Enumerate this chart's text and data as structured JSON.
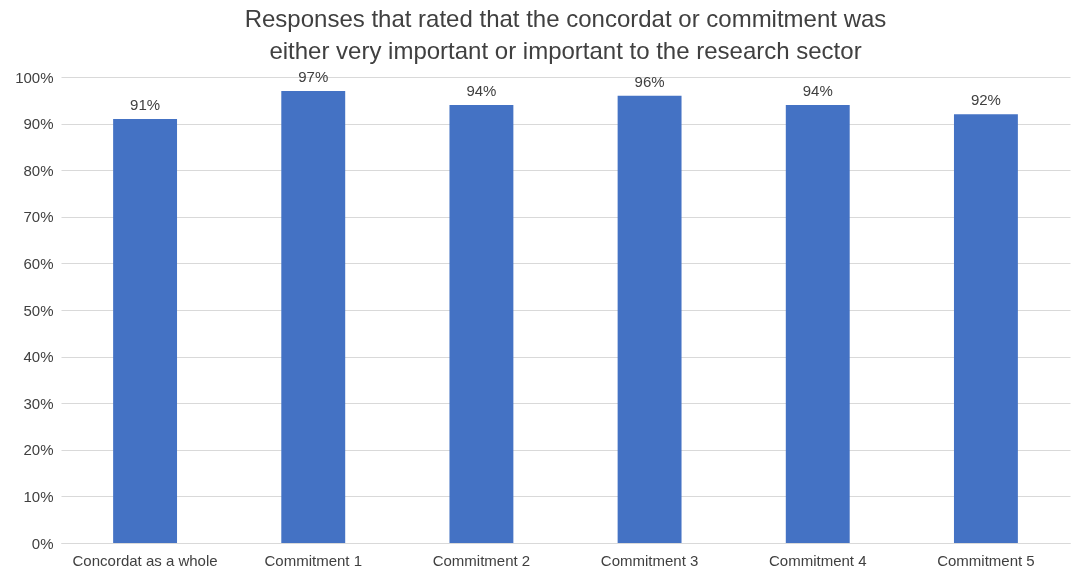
{
  "chart_data": {
    "type": "bar",
    "title": "Responses that rated that the concordat or commitment was either very important or important to the research sector",
    "categories": [
      "Concordat as a whole",
      "Commitment 1",
      "Commitment 2",
      "Commitment 3",
      "Commitment 4",
      "Commitment 5"
    ],
    "values": [
      91,
      97,
      94,
      96,
      94,
      92
    ],
    "value_labels": [
      "91%",
      "97%",
      "94%",
      "96%",
      "94%",
      "92%"
    ],
    "color": "#4472c4",
    "ylim": [
      0,
      100
    ],
    "yticks": [
      {
        "value": 0,
        "label": "0%"
      },
      {
        "value": 10,
        "label": "10%"
      },
      {
        "value": 20,
        "label": "20%"
      },
      {
        "value": 30,
        "label": "30%"
      },
      {
        "value": 40,
        "label": "40%"
      },
      {
        "value": 50,
        "label": "50%"
      },
      {
        "value": 60,
        "label": "60%"
      },
      {
        "value": 70,
        "label": "70%"
      },
      {
        "value": 80,
        "label": "80%"
      },
      {
        "value": 90,
        "label": "90%"
      },
      {
        "value": 100,
        "label": "100%"
      }
    ],
    "grid": "y"
  }
}
